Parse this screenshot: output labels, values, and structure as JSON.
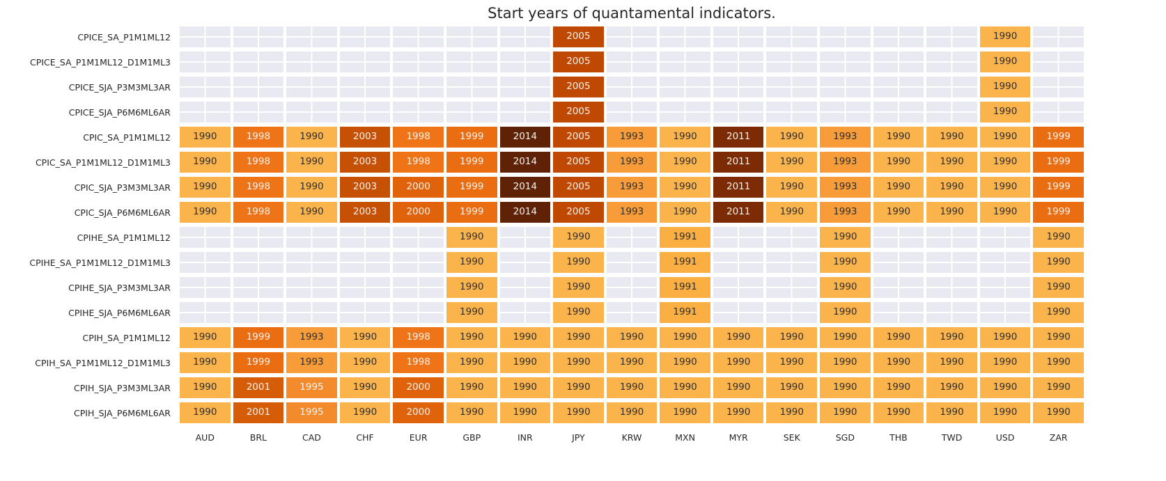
{
  "title": "Start years of quantamental indicators.",
  "chart_data": {
    "type": "heatmap",
    "title": "Start years of quantamental indicators.",
    "xlabel": "",
    "ylabel": "",
    "legend": "none",
    "background_style": "seaborn-light-lavender-grid",
    "columns": [
      "AUD",
      "BRL",
      "CAD",
      "CHF",
      "EUR",
      "GBP",
      "INR",
      "JPY",
      "KRW",
      "MXN",
      "MYR",
      "SEK",
      "SGD",
      "THB",
      "TWD",
      "USD",
      "ZAR"
    ],
    "rows": [
      "CPICE_SA_P1M1ML12",
      "CPICE_SA_P1M1ML12_D1M1ML3",
      "CPICE_SJA_P3M3ML3AR",
      "CPICE_SJA_P6M6ML6AR",
      "CPIC_SA_P1M1ML12",
      "CPIC_SA_P1M1ML12_D1M1ML3",
      "CPIC_SJA_P3M3ML3AR",
      "CPIC_SJA_P6M6ML6AR",
      "CPIHE_SA_P1M1ML12",
      "CPIHE_SA_P1M1ML12_D1M1ML3",
      "CPIHE_SJA_P3M3ML3AR",
      "CPIHE_SJA_P6M6ML6AR",
      "CPIH_SA_P1M1ML12",
      "CPIH_SA_P1M1ML12_D1M1ML3",
      "CPIH_SJA_P3M3ML3AR",
      "CPIH_SJA_P6M6ML6AR"
    ],
    "values": [
      [
        null,
        null,
        null,
        null,
        null,
        null,
        null,
        2005,
        null,
        null,
        null,
        null,
        null,
        null,
        null,
        1990,
        null
      ],
      [
        null,
        null,
        null,
        null,
        null,
        null,
        null,
        2005,
        null,
        null,
        null,
        null,
        null,
        null,
        null,
        1990,
        null
      ],
      [
        null,
        null,
        null,
        null,
        null,
        null,
        null,
        2005,
        null,
        null,
        null,
        null,
        null,
        null,
        null,
        1990,
        null
      ],
      [
        null,
        null,
        null,
        null,
        null,
        null,
        null,
        2005,
        null,
        null,
        null,
        null,
        null,
        null,
        null,
        1990,
        null
      ],
      [
        1990,
        1998,
        1990,
        2003,
        1998,
        1999,
        2014,
        2005,
        1993,
        1990,
        2011,
        1990,
        1993,
        1990,
        1990,
        1990,
        1999
      ],
      [
        1990,
        1998,
        1990,
        2003,
        1998,
        1999,
        2014,
        2005,
        1993,
        1990,
        2011,
        1990,
        1993,
        1990,
        1990,
        1990,
        1999
      ],
      [
        1990,
        1998,
        1990,
        2003,
        2000,
        1999,
        2014,
        2005,
        1993,
        1990,
        2011,
        1990,
        1993,
        1990,
        1990,
        1990,
        1999
      ],
      [
        1990,
        1998,
        1990,
        2003,
        2000,
        1999,
        2014,
        2005,
        1993,
        1990,
        2011,
        1990,
        1993,
        1990,
        1990,
        1990,
        1999
      ],
      [
        null,
        null,
        null,
        null,
        null,
        1990,
        null,
        1990,
        null,
        1991,
        null,
        null,
        1990,
        null,
        null,
        null,
        1990
      ],
      [
        null,
        null,
        null,
        null,
        null,
        1990,
        null,
        1990,
        null,
        1991,
        null,
        null,
        1990,
        null,
        null,
        null,
        1990
      ],
      [
        null,
        null,
        null,
        null,
        null,
        1990,
        null,
        1990,
        null,
        1991,
        null,
        null,
        1990,
        null,
        null,
        null,
        1990
      ],
      [
        null,
        null,
        null,
        null,
        null,
        1990,
        null,
        1990,
        null,
        1991,
        null,
        null,
        1990,
        null,
        null,
        null,
        1990
      ],
      [
        1990,
        1999,
        1993,
        1990,
        1998,
        1990,
        1990,
        1990,
        1990,
        1990,
        1990,
        1990,
        1990,
        1990,
        1990,
        1990,
        1990
      ],
      [
        1990,
        1999,
        1993,
        1990,
        1998,
        1990,
        1990,
        1990,
        1990,
        1990,
        1990,
        1990,
        1990,
        1990,
        1990,
        1990,
        1990
      ],
      [
        1990,
        2001,
        1995,
        1990,
        2000,
        1990,
        1990,
        1990,
        1990,
        1990,
        1990,
        1990,
        1990,
        1990,
        1990,
        1990,
        1990
      ],
      [
        1990,
        2001,
        1995,
        1990,
        2000,
        1990,
        1990,
        1990,
        1990,
        1990,
        1990,
        1990,
        1990,
        1990,
        1990,
        1990,
        1990
      ]
    ],
    "colormap": "YlOrBr-like, earlier year = lighter orange, later year = darker brown",
    "year_colors": {
      "1990": "#fbb34c",
      "1991": "#fbae41",
      "1993": "#f89c39",
      "1995": "#f38b2c",
      "1998": "#ee7417",
      "1999": "#ea6e11",
      "2000": "#e0630c",
      "2001": "#d65d07",
      "2003": "#c65004",
      "2005": "#bf4902",
      "2011": "#7c2b05",
      "2014": "#5f2206"
    },
    "dark_text_years": [
      1990,
      1991,
      1993
    ],
    "dark_text_color": "#2e2e2e",
    "light_text_color": "#f5f2ee",
    "empty_cell_color": "#e9e9f1",
    "gridline_color": "#ffffff"
  }
}
